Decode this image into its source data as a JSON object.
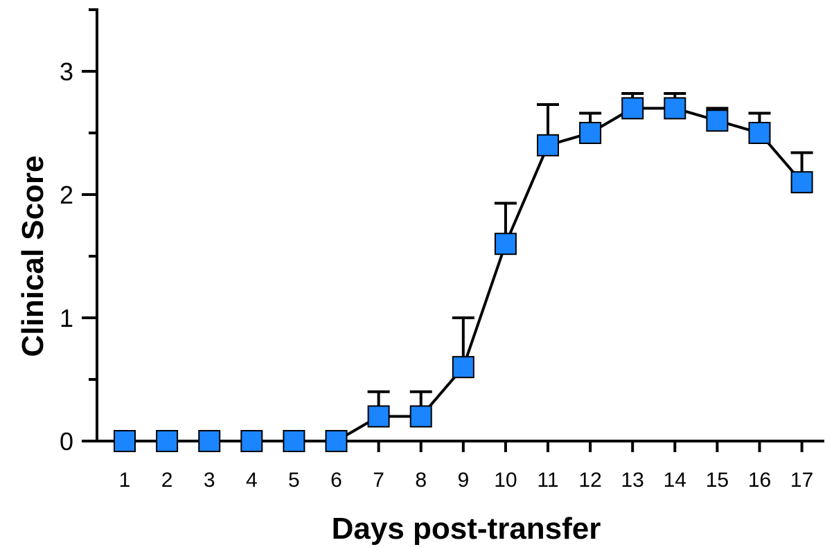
{
  "chart_data": {
    "type": "line",
    "title": "",
    "xlabel": "Days post-transfer",
    "ylabel": "Clinical Score",
    "x": [
      1,
      2,
      3,
      4,
      5,
      6,
      7,
      8,
      9,
      10,
      11,
      12,
      13,
      14,
      15,
      16,
      17
    ],
    "x_tick_labels": [
      "1",
      "2",
      "3",
      "4",
      "5",
      "6",
      "7",
      "8",
      "9",
      "10",
      "11",
      "12",
      "13",
      "14",
      "15",
      "16",
      "17"
    ],
    "y_ticks": [
      0,
      1,
      2,
      3
    ],
    "y_tick_labels": [
      "0",
      "1",
      "2",
      "3"
    ],
    "ylim": [
      0,
      3.5
    ],
    "xlim": [
      0.5,
      17.5
    ],
    "grid": false,
    "marker_color": "#1a85ff",
    "series": [
      {
        "values": [
          0,
          0,
          0,
          0,
          0,
          0,
          0.2,
          0.2,
          0.6,
          1.6,
          2.4,
          2.5,
          2.7,
          2.7,
          2.6,
          2.5,
          2.1
        ],
        "error_upper": [
          0,
          0,
          0,
          0,
          0,
          0,
          0.2,
          0.2,
          0.4,
          0.33,
          0.33,
          0.16,
          0.12,
          0.12,
          0.1,
          0.16,
          0.24
        ]
      }
    ]
  }
}
